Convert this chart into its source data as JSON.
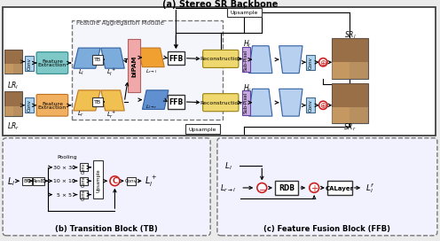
{
  "title_a": "(a) Stereo SR Backbone",
  "title_b": "(b) Transition Block (TB)",
  "title_c": "(c) Feature Fusion Block (FFB)",
  "fam_label": "Feature Aggregation Module",
  "upsample_label": "Upsample",
  "bg_color": "#ebebeb",
  "section_a_fc": "#f7f7f7",
  "section_b_fc": "#f0f0fa",
  "section_c_fc": "#f0f0fa",
  "feat_extract_l_color": "#7ec8c8",
  "feat_extract_r_color": "#f0b060",
  "conv_color": "#aed4f0",
  "recon_color": "#f0d870",
  "subpixel_color": "#c8a8e0",
  "bipam_color": "#f0a8a8",
  "para_l_color": "#6090d0",
  "para_r_color": "#f0a030",
  "ffb_text_color": "#000000",
  "img_color_lr": "#b89060",
  "img_color_sr": "#b89060"
}
